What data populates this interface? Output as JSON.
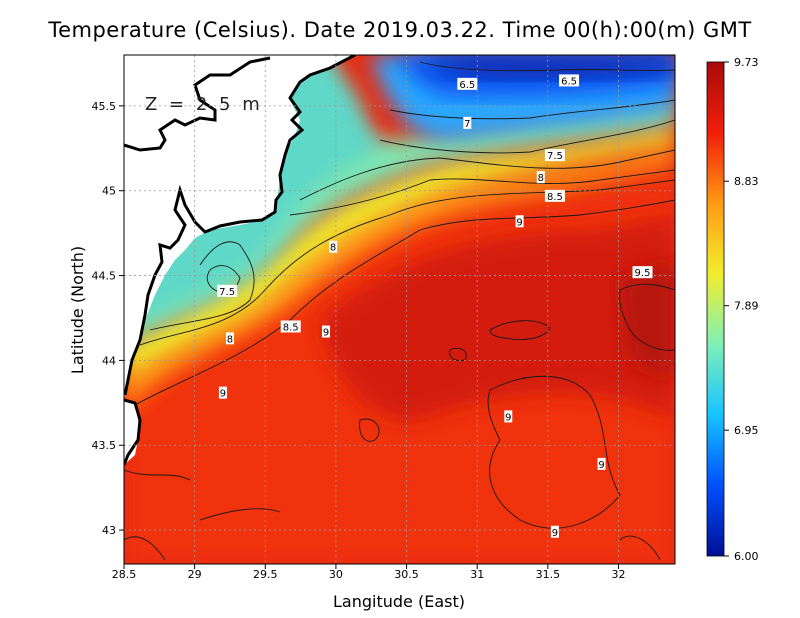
{
  "title": "Temperature (Celsius). Date 2019.03.22. Time 00(h):00(m)  GMT",
  "depth_label": "Z = 2.5 m",
  "xlabel": "Langitude (East)",
  "ylabel": "Latitude (North)",
  "x_ticks": [
    "28.5",
    "29",
    "29.5",
    "30",
    "30.5",
    "31",
    "31.5",
    "32"
  ],
  "y_ticks": [
    "43",
    "43.5",
    "44",
    "44.5",
    "45",
    "45.5"
  ],
  "colorbar": {
    "ticks": [
      "9.73",
      "8.83",
      "7.89",
      "6.95",
      "6.00"
    ],
    "min": 6.0,
    "max": 9.73,
    "colors": [
      "#000f96",
      "#0050ff",
      "#16c4ff",
      "#7ff0b8",
      "#f2ee2c",
      "#ff9a14",
      "#f21e0a",
      "#a90a0a"
    ]
  },
  "chart_data": {
    "type": "heatmap",
    "title": "Temperature (Celsius). Date 2019.03.22. Time 00(h):00(m)  GMT",
    "xlabel": "Langitude (East)",
    "ylabel": "Latitude (North)",
    "xlim": [
      28.5,
      32.4
    ],
    "ylim": [
      42.8,
      45.8
    ],
    "grid": true,
    "colorbar_range": [
      6.0,
      9.73
    ],
    "contour_labels": [
      {
        "text": "6.5",
        "lon": 30.93,
        "lat": 45.63
      },
      {
        "text": "6.5",
        "lon": 31.65,
        "lat": 45.65
      },
      {
        "text": "7",
        "lon": 30.93,
        "lat": 45.4
      },
      {
        "text": "7.5",
        "lon": 31.55,
        "lat": 45.21
      },
      {
        "text": "8",
        "lon": 31.45,
        "lat": 45.08
      },
      {
        "text": "8.5",
        "lon": 31.55,
        "lat": 44.97
      },
      {
        "text": "9",
        "lon": 31.3,
        "lat": 44.82
      },
      {
        "text": "9.5",
        "lon": 32.17,
        "lat": 44.52
      },
      {
        "text": "8",
        "lon": 29.98,
        "lat": 44.67
      },
      {
        "text": "7.5",
        "lon": 29.23,
        "lat": 44.41
      },
      {
        "text": "8",
        "lon": 29.25,
        "lat": 44.13
      },
      {
        "text": "8.5",
        "lon": 29.68,
        "lat": 44.2
      },
      {
        "text": "9",
        "lon": 29.93,
        "lat": 44.17
      },
      {
        "text": "9",
        "lon": 29.2,
        "lat": 43.81
      },
      {
        "text": "9",
        "lon": 31.22,
        "lat": 43.67
      },
      {
        "text": "9",
        "lon": 31.88,
        "lat": 43.39
      },
      {
        "text": "9",
        "lon": 31.55,
        "lat": 42.99
      }
    ]
  }
}
